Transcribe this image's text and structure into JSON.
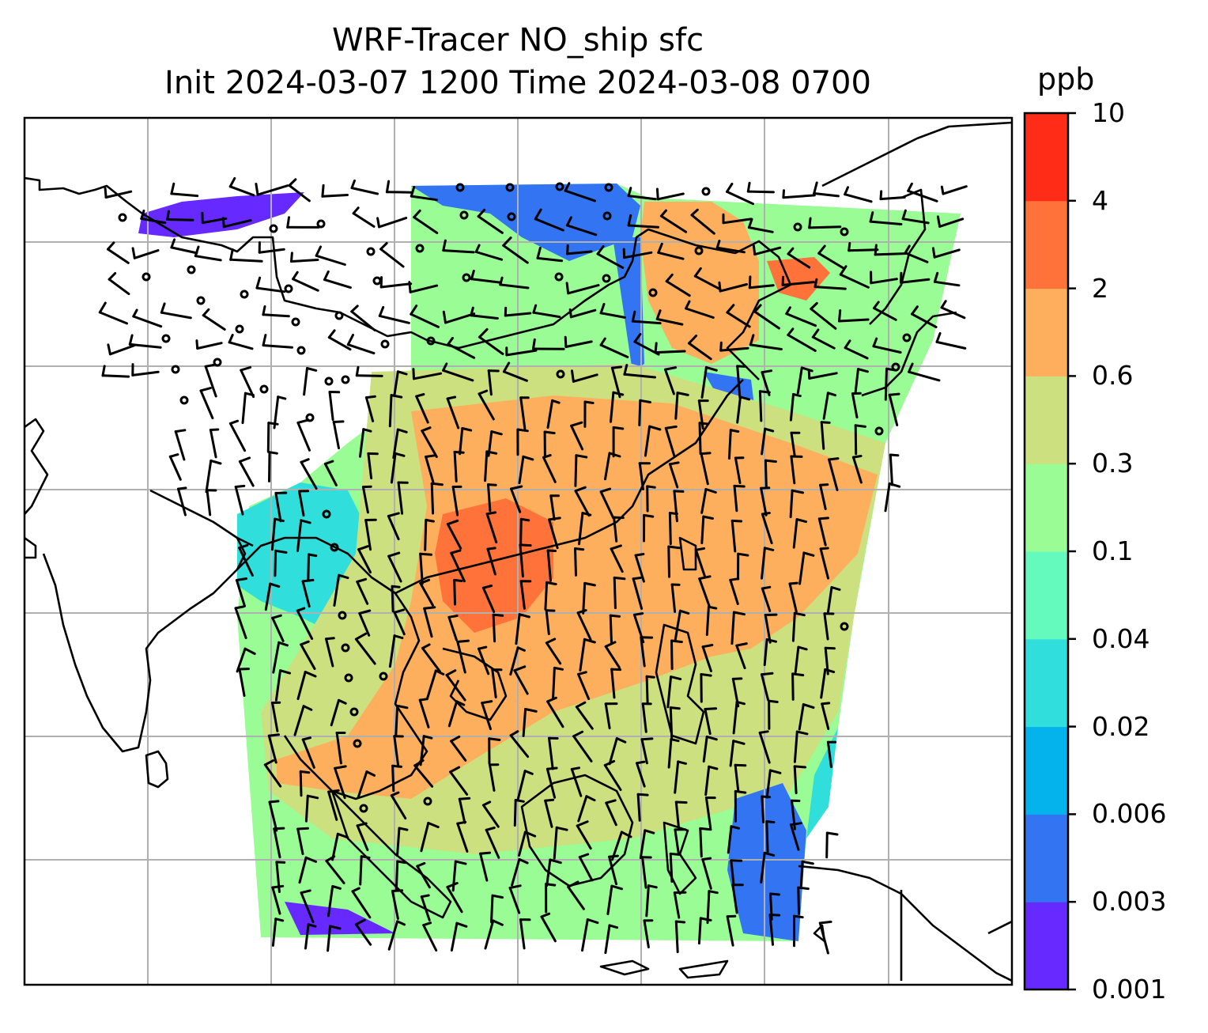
{
  "title": {
    "line1": "WRF-Tracer NO_ship sfc",
    "line2": "Init 2024-03-07 1200 Time 2024-03-08 0700"
  },
  "colorbar": {
    "unit": "ppb",
    "levels": [
      "0.001",
      "0.003",
      "0.006",
      "0.02",
      "0.04",
      "0.1",
      "0.3",
      "0.6",
      "2",
      "4",
      "10"
    ],
    "colors": [
      "#6629ff",
      "#3374f2",
      "#04b3ec",
      "#30dedb",
      "#65fabd",
      "#99fc95",
      "#cce07f",
      "#feaf5d",
      "#ff7239",
      "#ff2d17"
    ]
  },
  "map": {
    "gridlines": "on",
    "coastlines": "on",
    "vectors": "wind barbs"
  }
}
